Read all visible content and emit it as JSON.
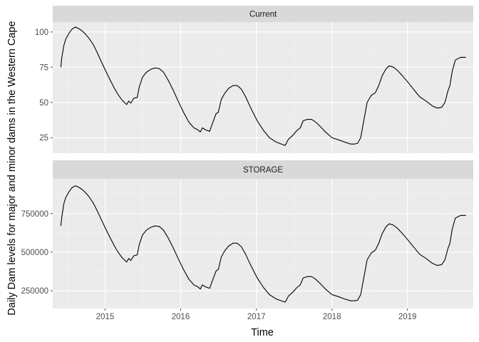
{
  "chart_data": {
    "type": "line",
    "xlabel": "Time",
    "ylabel": "Daily Dam levels for major and minor dams in the Western Cape",
    "xlim": [
      "2014-04-23",
      "2019-11-15"
    ],
    "x_ticks": [
      {
        "date": "2015-01-01",
        "label": "2015"
      },
      {
        "date": "2016-01-01",
        "label": "2016"
      },
      {
        "date": "2017-01-01",
        "label": "2017"
      },
      {
        "date": "2018-01-01",
        "label": "2018"
      },
      {
        "date": "2019-01-01",
        "label": "2019"
      }
    ],
    "grid": true,
    "facets": [
      {
        "strip": "Current",
        "ylim": [
          14,
          107
        ],
        "y_ticks": [
          {
            "value": 25,
            "label": "25"
          },
          {
            "value": 50,
            "label": "50"
          },
          {
            "value": 75,
            "label": "75"
          },
          {
            "value": 100,
            "label": "100"
          }
        ],
        "series": [
          {
            "points": [
              [
                "2014-06-01",
                75
              ],
              [
                "2014-06-05",
                81
              ],
              [
                "2014-06-15",
                90
              ],
              [
                "2014-06-25",
                95
              ],
              [
                "2014-07-10",
                99
              ],
              [
                "2014-07-25",
                102
              ],
              [
                "2014-08-10",
                103.5
              ],
              [
                "2014-08-25",
                102.5
              ],
              [
                "2014-09-10",
                101
              ],
              [
                "2014-09-25",
                99
              ],
              [
                "2014-10-15",
                95.5
              ],
              [
                "2014-11-05",
                91
              ],
              [
                "2014-11-25",
                85
              ],
              [
                "2014-12-15",
                78.5
              ],
              [
                "2015-01-05",
                72
              ],
              [
                "2015-01-25",
                66
              ],
              [
                "2015-02-15",
                60
              ],
              [
                "2015-03-05",
                55.5
              ],
              [
                "2015-03-25",
                51.5
              ],
              [
                "2015-04-15",
                48.5
              ],
              [
                "2015-04-25",
                51
              ],
              [
                "2015-05-05",
                49.5
              ],
              [
                "2015-05-20",
                53
              ],
              [
                "2015-06-05",
                53.5
              ],
              [
                "2015-06-15",
                61
              ],
              [
                "2015-07-01",
                68
              ],
              [
                "2015-07-20",
                71.5
              ],
              [
                "2015-08-10",
                73.5
              ],
              [
                "2015-08-30",
                74.5
              ],
              [
                "2015-09-20",
                74
              ],
              [
                "2015-10-10",
                71.5
              ],
              [
                "2015-11-01",
                66
              ],
              [
                "2015-11-25",
                59
              ],
              [
                "2015-12-20",
                51
              ],
              [
                "2016-01-15",
                43
              ],
              [
                "2016-02-10",
                36
              ],
              [
                "2016-03-05",
                32
              ],
              [
                "2016-03-25",
                30.5
              ],
              [
                "2016-04-05",
                29
              ],
              [
                "2016-04-15",
                32
              ],
              [
                "2016-05-01",
                30.5
              ],
              [
                "2016-05-20",
                29.5
              ],
              [
                "2016-06-05",
                36
              ],
              [
                "2016-06-20",
                42
              ],
              [
                "2016-07-01",
                43
              ],
              [
                "2016-07-15",
                52
              ],
              [
                "2016-08-01",
                56.5
              ],
              [
                "2016-08-20",
                60
              ],
              [
                "2016-09-10",
                62
              ],
              [
                "2016-09-30",
                62
              ],
              [
                "2016-10-20",
                59.5
              ],
              [
                "2016-11-10",
                54
              ],
              [
                "2016-12-05",
                46
              ],
              [
                "2017-01-05",
                37
              ],
              [
                "2017-02-05",
                30
              ],
              [
                "2017-03-05",
                25
              ],
              [
                "2017-04-05",
                22
              ],
              [
                "2017-05-01",
                20.5
              ],
              [
                "2017-05-20",
                19.5
              ],
              [
                "2017-06-05",
                24
              ],
              [
                "2017-06-25",
                26.5
              ],
              [
                "2017-07-15",
                30
              ],
              [
                "2017-08-01",
                32
              ],
              [
                "2017-08-15",
                37
              ],
              [
                "2017-09-05",
                38
              ],
              [
                "2017-09-25",
                38
              ],
              [
                "2017-10-15",
                36
              ],
              [
                "2017-11-05",
                33
              ],
              [
                "2017-12-01",
                29
              ],
              [
                "2018-01-01",
                25
              ],
              [
                "2018-02-01",
                23.5
              ],
              [
                "2018-03-01",
                22
              ],
              [
                "2018-04-01",
                20.5
              ],
              [
                "2018-04-20",
                20.5
              ],
              [
                "2018-05-05",
                21
              ],
              [
                "2018-05-20",
                25
              ],
              [
                "2018-06-05",
                38
              ],
              [
                "2018-06-20",
                50
              ],
              [
                "2018-07-10",
                55
              ],
              [
                "2018-07-30",
                57
              ],
              [
                "2018-08-15",
                62
              ],
              [
                "2018-09-01",
                69
              ],
              [
                "2018-09-20",
                74
              ],
              [
                "2018-10-05",
                76
              ],
              [
                "2018-10-25",
                75
              ],
              [
                "2018-11-15",
                72.5
              ],
              [
                "2018-12-10",
                68.5
              ],
              [
                "2019-01-05",
                64
              ],
              [
                "2019-02-01",
                59
              ],
              [
                "2019-03-01",
                54
              ],
              [
                "2019-04-01",
                51
              ],
              [
                "2019-05-01",
                47.5
              ],
              [
                "2019-05-25",
                46
              ],
              [
                "2019-06-15",
                46.5
              ],
              [
                "2019-07-01",
                50
              ],
              [
                "2019-07-15",
                58
              ],
              [
                "2019-07-25",
                62
              ],
              [
                "2019-08-05",
                72
              ],
              [
                "2019-08-20",
                80
              ],
              [
                "2019-09-01",
                81
              ],
              [
                "2019-09-15",
                82
              ],
              [
                "2019-10-01",
                82
              ],
              [
                "2019-10-10",
                82
              ]
            ]
          }
        ]
      },
      {
        "strip": "STORAGE",
        "ylim": [
          135000,
          975000
        ],
        "y_ticks": [
          {
            "value": 250000,
            "label": "250000"
          },
          {
            "value": 500000,
            "label": "500000"
          },
          {
            "value": 750000,
            "label": "750000"
          }
        ],
        "series": [
          {
            "points": [
              [
                "2014-06-01",
                670000
              ],
              [
                "2014-06-05",
                720000
              ],
              [
                "2014-06-15",
                810000
              ],
              [
                "2014-06-25",
                855000
              ],
              [
                "2014-07-10",
                890000
              ],
              [
                "2014-07-25",
                918000
              ],
              [
                "2014-08-10",
                930000
              ],
              [
                "2014-08-25",
                922000
              ],
              [
                "2014-09-10",
                908000
              ],
              [
                "2014-09-25",
                890000
              ],
              [
                "2014-10-15",
                860000
              ],
              [
                "2014-11-05",
                818000
              ],
              [
                "2014-11-25",
                765000
              ],
              [
                "2014-12-15",
                707000
              ],
              [
                "2015-01-05",
                648000
              ],
              [
                "2015-01-25",
                594000
              ],
              [
                "2015-02-15",
                540000
              ],
              [
                "2015-03-05",
                499000
              ],
              [
                "2015-03-25",
                463000
              ],
              [
                "2015-04-15",
                436000
              ],
              [
                "2015-04-25",
                459000
              ],
              [
                "2015-05-05",
                446000
              ],
              [
                "2015-05-20",
                477000
              ],
              [
                "2015-06-05",
                482000
              ],
              [
                "2015-06-15",
                549000
              ],
              [
                "2015-07-01",
                612000
              ],
              [
                "2015-07-20",
                643000
              ],
              [
                "2015-08-10",
                661000
              ],
              [
                "2015-08-30",
                670000
              ],
              [
                "2015-09-20",
                666000
              ],
              [
                "2015-10-10",
                643000
              ],
              [
                "2015-11-01",
                594000
              ],
              [
                "2015-11-25",
                531000
              ],
              [
                "2015-12-20",
                459000
              ],
              [
                "2016-01-15",
                387000
              ],
              [
                "2016-02-10",
                324000
              ],
              [
                "2016-03-05",
                288000
              ],
              [
                "2016-03-25",
                275000
              ],
              [
                "2016-04-05",
                261000
              ],
              [
                "2016-04-15",
                288000
              ],
              [
                "2016-05-01",
                275000
              ],
              [
                "2016-05-20",
                266000
              ],
              [
                "2016-06-05",
                324000
              ],
              [
                "2016-06-20",
                378000
              ],
              [
                "2016-07-01",
                387000
              ],
              [
                "2016-07-15",
                468000
              ],
              [
                "2016-08-01",
                509000
              ],
              [
                "2016-08-20",
                540000
              ],
              [
                "2016-09-10",
                558000
              ],
              [
                "2016-09-30",
                558000
              ],
              [
                "2016-10-20",
                536000
              ],
              [
                "2016-11-10",
                486000
              ],
              [
                "2016-12-05",
                414000
              ],
              [
                "2017-01-05",
                333000
              ],
              [
                "2017-02-05",
                270000
              ],
              [
                "2017-03-05",
                225000
              ],
              [
                "2017-04-05",
                198000
              ],
              [
                "2017-05-01",
                185000
              ],
              [
                "2017-05-20",
                176000
              ],
              [
                "2017-06-05",
                216000
              ],
              [
                "2017-06-25",
                239000
              ],
              [
                "2017-07-15",
                270000
              ],
              [
                "2017-08-01",
                288000
              ],
              [
                "2017-08-15",
                333000
              ],
              [
                "2017-09-05",
                342000
              ],
              [
                "2017-09-25",
                342000
              ],
              [
                "2017-10-15",
                324000
              ],
              [
                "2017-11-05",
                297000
              ],
              [
                "2017-12-01",
                261000
              ],
              [
                "2018-01-01",
                225000
              ],
              [
                "2018-02-01",
                212000
              ],
              [
                "2018-03-01",
                198000
              ],
              [
                "2018-04-01",
                185000
              ],
              [
                "2018-04-20",
                185000
              ],
              [
                "2018-05-05",
                189000
              ],
              [
                "2018-05-20",
                225000
              ],
              [
                "2018-06-05",
                342000
              ],
              [
                "2018-06-20",
                450000
              ],
              [
                "2018-07-10",
                495000
              ],
              [
                "2018-07-30",
                513000
              ],
              [
                "2018-08-15",
                558000
              ],
              [
                "2018-09-01",
                621000
              ],
              [
                "2018-09-20",
                666000
              ],
              [
                "2018-10-05",
                684000
              ],
              [
                "2018-10-25",
                675000
              ],
              [
                "2018-11-15",
                653000
              ],
              [
                "2018-12-10",
                617000
              ],
              [
                "2019-01-05",
                576000
              ],
              [
                "2019-02-01",
                531000
              ],
              [
                "2019-03-01",
                486000
              ],
              [
                "2019-04-01",
                459000
              ],
              [
                "2019-05-01",
                428000
              ],
              [
                "2019-05-25",
                414000
              ],
              [
                "2019-06-15",
                419000
              ],
              [
                "2019-07-01",
                450000
              ],
              [
                "2019-07-15",
                522000
              ],
              [
                "2019-07-25",
                558000
              ],
              [
                "2019-08-05",
                648000
              ],
              [
                "2019-08-20",
                720000
              ],
              [
                "2019-09-01",
                729000
              ],
              [
                "2019-09-15",
                738000
              ],
              [
                "2019-10-01",
                738000
              ],
              [
                "2019-10-10",
                738000
              ]
            ]
          }
        ]
      }
    ]
  }
}
